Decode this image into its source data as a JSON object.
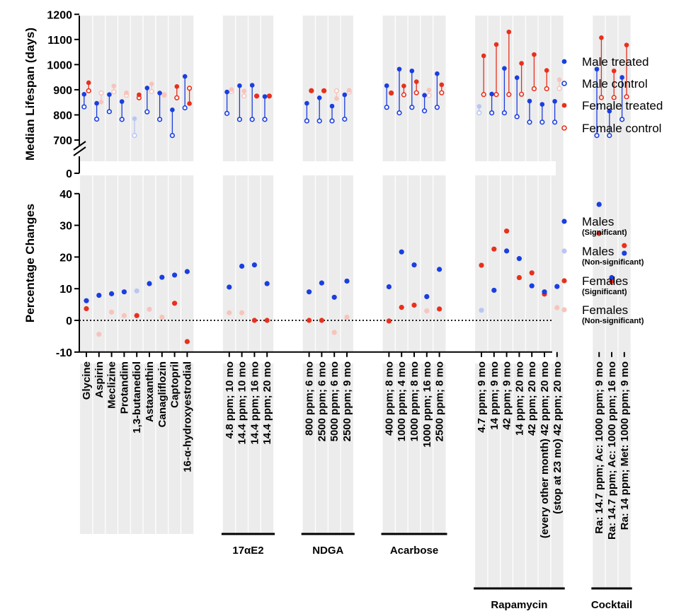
{
  "chart_data": [
    {
      "type": "scatter",
      "ylabel": "Median Lifespan (days)",
      "yticks": [
        0,
        700,
        800,
        900,
        1000,
        1100,
        1200
      ],
      "ylim": [
        700,
        1200
      ],
      "axis_break": true,
      "grid": false,
      "legend_position": "right",
      "legend": [
        {
          "label": "Male treated",
          "color": "#1a3ee0",
          "marker": "filled"
        },
        {
          "label": "Male control",
          "color": "#1a3ee0",
          "marker": "open"
        },
        {
          "label": "Female treated",
          "color": "#e8301c",
          "marker": "filled"
        },
        {
          "label": "Female control",
          "color": "#e8301c",
          "marker": "open"
        }
      ],
      "non_significant_colors": {
        "male": "#b9c6f4",
        "female": "#f7c4bb"
      },
      "categories": [
        "Glycine",
        "Aspirin",
        "Meclizine",
        "Protandim",
        "1,3-butanediol",
        "Astaxanthin",
        "Canagliflozin",
        "Captopril",
        "16-α-hydroxyestrodial",
        "4.8 ppm; 10 mo",
        "14.4 ppm; 10 mo",
        "14.4 ppm; 16 mo",
        "14.4 ppm; 20 mo",
        "800 ppm; 6 mo",
        "2500 ppm; 6 mo",
        "5000 ppm; 6 mo",
        "2500 ppm; 9 mo",
        "400 ppm; 8 mo",
        "1000 ppm; 4 mo",
        "1000 ppm; 8 mo",
        "1000 ppm; 16 mo",
        "2500 ppm; 8 mo",
        "4.7 ppm; 9 mo",
        "14 ppm; 9 mo",
        "42 ppm; 9 mo",
        "14 ppm; 20 mo",
        "42 ppm; 20 mo",
        "(every other month) 42 ppm; 20 mo",
        "(stop at 23 mo) 42 ppm; 20 mo",
        "Ra: 14.7 ppm; Ac: 1000 ppm; 9 mo",
        "Ra: 14.7 ppm; Ac: 1000 ppm; 16 mo",
        "Ra: 14 ppm; Met: 1000 ppm; 9 mo"
      ],
      "male_treated": [
        882,
        846,
        881,
        853,
        785,
        907,
        887,
        820,
        953,
        891,
        916,
        918,
        873,
        846,
        868,
        835,
        880,
        916,
        982,
        975,
        878,
        964,
        834,
        883,
        985,
        948,
        855,
        842,
        854,
        982,
        815,
        949
      ],
      "male_control": [
        832,
        783,
        813,
        782,
        718,
        812,
        782,
        718,
        828,
        806,
        782,
        782,
        782,
        776,
        776,
        776,
        783,
        830,
        808,
        830,
        816,
        830,
        808,
        808,
        808,
        793,
        771,
        771,
        771,
        718,
        718,
        782
      ],
      "male_significant": [
        true,
        true,
        true,
        true,
        false,
        true,
        true,
        true,
        true,
        true,
        true,
        true,
        true,
        true,
        true,
        true,
        true,
        true,
        true,
        true,
        true,
        true,
        false,
        true,
        true,
        true,
        true,
        true,
        true,
        true,
        true,
        true
      ],
      "female_treated": [
        928,
        851,
        915,
        888,
        880,
        923,
        877,
        913,
        845,
        901,
        895,
        875,
        875,
        897,
        896,
        865,
        898,
        887,
        915,
        932,
        899,
        920,
        1035,
        1080,
        1130,
        1005,
        1040,
        977,
        940,
        1107,
        975,
        1078
      ],
      "female_control": [
        896,
        887,
        892,
        878,
        868,
        893,
        880,
        868,
        906,
        893,
        875,
        875,
        875,
        896,
        896,
        896,
        890,
        887,
        880,
        888,
        877,
        888,
        881,
        881,
        881,
        882,
        904,
        904,
        905,
        869,
        869,
        872
      ],
      "female_significant": [
        true,
        false,
        false,
        false,
        true,
        false,
        false,
        true,
        true,
        false,
        false,
        true,
        true,
        true,
        true,
        false,
        false,
        true,
        true,
        true,
        false,
        true,
        true,
        true,
        true,
        true,
        true,
        true,
        false,
        true,
        true,
        true
      ]
    },
    {
      "type": "scatter",
      "ylabel": "Percentage Changes",
      "ylim": [
        -10,
        40
      ],
      "yticks": [
        -10,
        0,
        10,
        20,
        30,
        40
      ],
      "reference_line": 0,
      "legend_position": "right",
      "legend": [
        {
          "label": "Males",
          "sub": "(Significant)",
          "color": "#1a3ee0"
        },
        {
          "label": "Males",
          "sub": "(Non-significant)",
          "color": "#b9c6f4"
        },
        {
          "label": "Females",
          "sub": "(Significant)",
          "color": "#e8301c"
        },
        {
          "label": "Females",
          "sub": "(Non-significant)",
          "color": "#f7c4bb"
        }
      ],
      "categories_ref": "same as panel 1",
      "males": [
        6.2,
        7.9,
        8.4,
        9.0,
        9.3,
        11.6,
        13.6,
        14.3,
        15.4,
        10.5,
        17.1,
        17.5,
        11.6,
        9.0,
        11.8,
        7.3,
        12.4,
        10.6,
        21.6,
        17.5,
        7.5,
        16.1,
        3.2,
        9.5,
        21.9,
        19.5,
        10.9,
        9.0,
        10.7,
        36.6,
        13.5,
        21.2
      ],
      "females": [
        3.7,
        -4.4,
        2.6,
        1.5,
        1.5,
        3.5,
        1.0,
        5.4,
        -6.7,
        2.4,
        2.4,
        0,
        0,
        0,
        0,
        -3.8,
        1.0,
        -0.2,
        4.1,
        4.8,
        3.0,
        3.6,
        17.4,
        22.5,
        28.2,
        13.5,
        15.0,
        8.3,
        4.0,
        27.4,
        12.3,
        23.6
      ],
      "female_significant": [
        true,
        false,
        false,
        false,
        true,
        false,
        false,
        true,
        true,
        false,
        false,
        true,
        true,
        true,
        true,
        false,
        false,
        true,
        true,
        true,
        false,
        true,
        true,
        true,
        true,
        true,
        true,
        true,
        false,
        true,
        true,
        true
      ]
    }
  ],
  "groups": [
    {
      "label": "",
      "start": 0,
      "end": 8,
      "underline": false
    },
    {
      "label": "17αE2",
      "start": 9,
      "end": 12,
      "underline": true
    },
    {
      "label": "NDGA",
      "start": 13,
      "end": 16,
      "underline": true
    },
    {
      "label": "Acarbose",
      "start": 17,
      "end": 21,
      "underline": true
    },
    {
      "label": "Rapamycin",
      "start": 22,
      "end": 28,
      "underline": true
    },
    {
      "label": "Cocktail",
      "start": 29,
      "end": 31,
      "underline": true
    }
  ],
  "colors": {
    "male": "#1a3ee0",
    "male_ns": "#b9c6f4",
    "female": "#e8301c",
    "female_ns": "#f7c4bb",
    "panel_bg": "#ececec"
  }
}
